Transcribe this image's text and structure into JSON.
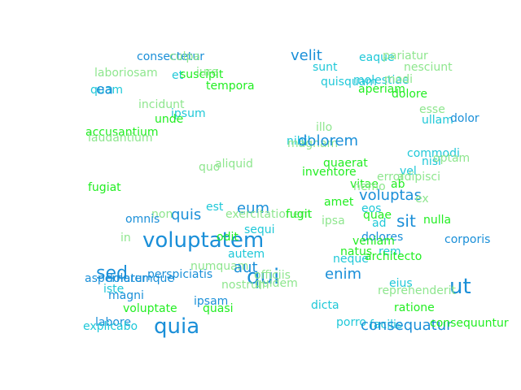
{
  "palette": {
    "blue": "#1a8fd8",
    "cyan": "#1fc8d8",
    "lightgreen": "#8ee68e",
    "green": "#22ee22"
  },
  "words": [
    {
      "text": "consectetur",
      "c": "blue",
      "s": 14
    },
    {
      "text": "culpa",
      "c": "lightgreen",
      "s": 14
    },
    {
      "text": "velit",
      "c": "blue",
      "s": 18
    },
    {
      "text": "eaque",
      "c": "cyan",
      "s": 14
    },
    {
      "text": "pariatur",
      "c": "lightgreen",
      "s": 14
    },
    {
      "text": "sunt",
      "c": "cyan",
      "s": 14
    },
    {
      "text": "nesciunt",
      "c": "lightgreen",
      "s": 14
    },
    {
      "text": "laboriosam",
      "c": "lightgreen",
      "s": 14
    },
    {
      "text": "iure",
      "c": "lightgreen",
      "s": 14
    },
    {
      "text": "et",
      "c": "cyan",
      "s": 14
    },
    {
      "text": "suscipit",
      "c": "green",
      "s": 14
    },
    {
      "text": "quisquam",
      "c": "cyan",
      "s": 14
    },
    {
      "text": "molestiae",
      "c": "cyan",
      "s": 14
    },
    {
      "text": "modi",
      "c": "lightgreen",
      "s": 14
    },
    {
      "text": "tempora",
      "c": "green",
      "s": 14
    },
    {
      "text": "quam",
      "c": "cyan",
      "s": 14
    },
    {
      "text": "ea",
      "c": "blue",
      "s": 17
    },
    {
      "text": "aperiam",
      "c": "green",
      "s": 14
    },
    {
      "text": "dolore",
      "c": "green",
      "s": 14
    },
    {
      "text": "incidunt",
      "c": "lightgreen",
      "s": 14
    },
    {
      "text": "esse",
      "c": "lightgreen",
      "s": 14
    },
    {
      "text": "ipsum",
      "c": "cyan",
      "s": 14
    },
    {
      "text": "unde",
      "c": "green",
      "s": 14
    },
    {
      "text": "ullam",
      "c": "cyan",
      "s": 14
    },
    {
      "text": "dolor",
      "c": "blue",
      "s": 14
    },
    {
      "text": "illo",
      "c": "lightgreen",
      "s": 14
    },
    {
      "text": "accusantium",
      "c": "green",
      "s": 14
    },
    {
      "text": "laudantium",
      "c": "lightgreen",
      "s": 14
    },
    {
      "text": "nihil",
      "c": "cyan",
      "s": 14
    },
    {
      "text": "magnam",
      "c": "lightgreen",
      "s": 14
    },
    {
      "text": "dolorem",
      "c": "blue",
      "s": 18
    },
    {
      "text": "commodi",
      "c": "cyan",
      "s": 14
    },
    {
      "text": "nisi",
      "c": "cyan",
      "s": 14
    },
    {
      "text": "optam",
      "c": "lightgreen",
      "s": 14
    },
    {
      "text": "quaerat",
      "c": "green",
      "s": 14
    },
    {
      "text": "quo",
      "c": "lightgreen",
      "s": 14
    },
    {
      "text": "aliquid",
      "c": "lightgreen",
      "s": 14
    },
    {
      "text": "vel",
      "c": "cyan",
      "s": 14
    },
    {
      "text": "inventore",
      "c": "green",
      "s": 14
    },
    {
      "text": "error",
      "c": "lightgreen",
      "s": 14
    },
    {
      "text": "adipisci",
      "c": "lightgreen",
      "s": 14
    },
    {
      "text": "vitae",
      "c": "green",
      "s": 14
    },
    {
      "text": "nemo",
      "c": "lightgreen",
      "s": 14
    },
    {
      "text": "ab",
      "c": "green",
      "s": 14
    },
    {
      "text": "fugiat",
      "c": "green",
      "s": 14
    },
    {
      "text": "voluptas",
      "c": "blue",
      "s": 18
    },
    {
      "text": "ex",
      "c": "lightgreen",
      "s": 14
    },
    {
      "text": "amet",
      "c": "green",
      "s": 14
    },
    {
      "text": "est",
      "c": "cyan",
      "s": 14
    },
    {
      "text": "eum",
      "c": "blue",
      "s": 18
    },
    {
      "text": "eos",
      "c": "cyan",
      "s": 14
    },
    {
      "text": "non",
      "c": "lightgreen",
      "s": 14
    },
    {
      "text": "quis",
      "c": "blue",
      "s": 18
    },
    {
      "text": "exercitationem",
      "c": "lightgreen",
      "s": 14
    },
    {
      "text": "fugit",
      "c": "green",
      "s": 14
    },
    {
      "text": "quae",
      "c": "green",
      "s": 14
    },
    {
      "text": "omnis",
      "c": "blue",
      "s": 14
    },
    {
      "text": "ipsa",
      "c": "lightgreen",
      "s": 14
    },
    {
      "text": "sit",
      "c": "blue",
      "s": 20
    },
    {
      "text": "nulla",
      "c": "green",
      "s": 14
    },
    {
      "text": "ad",
      "c": "cyan",
      "s": 14
    },
    {
      "text": "sequi",
      "c": "cyan",
      "s": 14
    },
    {
      "text": "in",
      "c": "lightgreen",
      "s": 14
    },
    {
      "text": "voluptatem",
      "c": "blue",
      "s": 26
    },
    {
      "text": "odit",
      "c": "green",
      "s": 14
    },
    {
      "text": "dolores",
      "c": "blue",
      "s": 14
    },
    {
      "text": "corporis",
      "c": "blue",
      "s": 14
    },
    {
      "text": "veniam",
      "c": "green",
      "s": 14
    },
    {
      "text": "autem",
      "c": "cyan",
      "s": 14
    },
    {
      "text": "natus",
      "c": "green",
      "s": 14
    },
    {
      "text": "rem",
      "c": "cyan",
      "s": 14
    },
    {
      "text": "neque",
      "c": "cyan",
      "s": 14
    },
    {
      "text": "architecto",
      "c": "green",
      "s": 14
    },
    {
      "text": "numquam",
      "c": "lightgreen",
      "s": 14
    },
    {
      "text": "aut",
      "c": "blue",
      "s": 18
    },
    {
      "text": "sed",
      "c": "blue",
      "s": 22
    },
    {
      "text": "qui",
      "c": "blue",
      "s": 26
    },
    {
      "text": "enim",
      "c": "blue",
      "s": 18
    },
    {
      "text": "perspiciatis",
      "c": "blue",
      "s": 14
    },
    {
      "text": "officiis",
      "c": "lightgreen",
      "s": 14
    },
    {
      "text": "aspernatur",
      "c": "blue",
      "s": 14
    },
    {
      "text": "doloremque",
      "c": "blue",
      "s": 14
    },
    {
      "text": "nostrum",
      "c": "lightgreen",
      "s": 14
    },
    {
      "text": "quidem",
      "c": "lightgreen",
      "s": 14
    },
    {
      "text": "eius",
      "c": "cyan",
      "s": 14
    },
    {
      "text": "ut",
      "c": "blue",
      "s": 26
    },
    {
      "text": "iste",
      "c": "cyan",
      "s": 14
    },
    {
      "text": "reprehenderit",
      "c": "lightgreen",
      "s": 14
    },
    {
      "text": "magni",
      "c": "blue",
      "s": 14
    },
    {
      "text": "ipsam",
      "c": "blue",
      "s": 14
    },
    {
      "text": "dicta",
      "c": "cyan",
      "s": 14
    },
    {
      "text": "voluptate",
      "c": "green",
      "s": 14
    },
    {
      "text": "quasi",
      "c": "green",
      "s": 14
    },
    {
      "text": "ratione",
      "c": "green",
      "s": 14
    },
    {
      "text": "labore",
      "c": "blue",
      "s": 14
    },
    {
      "text": "quia",
      "c": "blue",
      "s": 26
    },
    {
      "text": "porro",
      "c": "cyan",
      "s": 14
    },
    {
      "text": "facilis",
      "c": "cyan",
      "s": 14
    },
    {
      "text": "consequatur",
      "c": "blue",
      "s": 18
    },
    {
      "text": "consequuntur",
      "c": "green",
      "s": 14
    },
    {
      "text": "explicabo",
      "c": "cyan",
      "s": 14
    }
  ]
}
